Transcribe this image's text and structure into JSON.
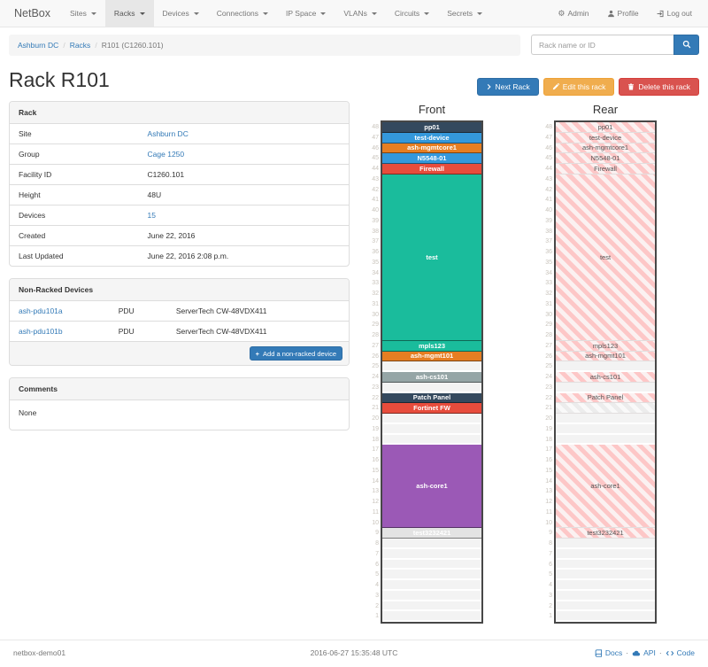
{
  "navbar": {
    "brand": "NetBox",
    "items": [
      {
        "label": "Sites",
        "active": false
      },
      {
        "label": "Racks",
        "active": true
      },
      {
        "label": "Devices",
        "active": false
      },
      {
        "label": "Connections",
        "active": false
      },
      {
        "label": "IP Space",
        "active": false
      },
      {
        "label": "VLANs",
        "active": false
      },
      {
        "label": "Circuits",
        "active": false
      },
      {
        "label": "Secrets",
        "active": false
      }
    ],
    "admin_label": "Admin",
    "profile_label": "Profile",
    "logout_label": "Log out"
  },
  "breadcrumb": {
    "items": [
      {
        "label": "Ashburn DC",
        "link": true
      },
      {
        "label": "Racks",
        "link": true
      },
      {
        "label": "R101 (C1260.101)",
        "link": false
      }
    ]
  },
  "search": {
    "placeholder": "Rack name or ID"
  },
  "page_title": "Rack R101",
  "actions": {
    "next_label": "Next Rack",
    "edit_label": "Edit this rack",
    "delete_label": "Delete this rack"
  },
  "rack_panel": {
    "title": "Rack",
    "rows": [
      {
        "label": "Site",
        "value": "Ashburn DC",
        "link": true
      },
      {
        "label": "Group",
        "value": "Cage 1250",
        "link": true
      },
      {
        "label": "Facility ID",
        "value": "C1260.101",
        "link": false
      },
      {
        "label": "Height",
        "value": "48U",
        "link": false
      },
      {
        "label": "Devices",
        "value": "15",
        "link": true
      },
      {
        "label": "Created",
        "value": "June 22, 2016",
        "link": false
      },
      {
        "label": "Last Updated",
        "value": "June 22, 2016 2:08 p.m.",
        "link": false
      }
    ]
  },
  "non_racked_panel": {
    "title": "Non-Racked Devices",
    "rows": [
      {
        "name": "ash-pdu101a",
        "role": "PDU",
        "model": "ServerTech CW-48VDX411"
      },
      {
        "name": "ash-pdu101b",
        "role": "PDU",
        "model": "ServerTech CW-48VDX411"
      }
    ],
    "add_button_label": "Add a non-racked device"
  },
  "comments_panel": {
    "title": "Comments",
    "body": "None"
  },
  "elevation": {
    "front_title": "Front",
    "rear_title": "Rear",
    "total_units": 48,
    "devices": [
      {
        "name": "pp01",
        "top_unit": 48,
        "u_height": 1,
        "color": "#34495e",
        "rear_blank": false
      },
      {
        "name": "test-device",
        "top_unit": 47,
        "u_height": 1,
        "color": "#3498db",
        "rear_blank": false
      },
      {
        "name": "ash-mgmtcore1",
        "top_unit": 46,
        "u_height": 1,
        "color": "#e67e22",
        "rear_blank": false
      },
      {
        "name": "N5548-01",
        "top_unit": 45,
        "u_height": 1,
        "color": "#3498db",
        "rear_blank": false
      },
      {
        "name": "Firewall",
        "top_unit": 44,
        "u_height": 1,
        "color": "#e74c3c",
        "rear_blank": false
      },
      {
        "name": "test",
        "top_unit": 43,
        "u_height": 16,
        "color": "#1abc9c",
        "rear_blank": false
      },
      {
        "name": "mpls123",
        "top_unit": 27,
        "u_height": 1,
        "color": "#1abc9c",
        "rear_blank": false
      },
      {
        "name": "ash-mgmt101",
        "top_unit": 26,
        "u_height": 1,
        "color": "#e67e22",
        "rear_blank": false
      },
      {
        "name": "ash-cs101",
        "top_unit": 24,
        "u_height": 1,
        "color": "#95a5a6",
        "rear_blank": false
      },
      {
        "name": "Patch Panel",
        "top_unit": 22,
        "u_height": 1,
        "color": "#34495e",
        "rear_blank": false
      },
      {
        "name": "Fortinet FW",
        "top_unit": 21,
        "u_height": 1,
        "color": "#e74c3c",
        "rear_blank": true
      },
      {
        "name": "ash-core1",
        "top_unit": 17,
        "u_height": 8,
        "color": "#9b59b6",
        "rear_blank": false
      },
      {
        "name": "test3232421",
        "top_unit": 9,
        "u_height": 1,
        "color": "#e3e3e3",
        "rear_blank": false
      }
    ]
  },
  "footer": {
    "hostname": "netbox-demo01",
    "timestamp": "2016-06-27 15:35:48 UTC",
    "links": [
      {
        "label": "Docs",
        "icon": "book-icon"
      },
      {
        "label": "API",
        "icon": "cloud-icon"
      },
      {
        "label": "Code",
        "icon": "code-icon"
      }
    ]
  },
  "icons": {
    "nav_dropdown": "caret-down",
    "admin": "gear",
    "profile": "user",
    "logout": "log-out",
    "search": "magnifier",
    "next": "chevron-right",
    "edit": "pencil",
    "delete": "trash",
    "add": "plus",
    "docs": "book",
    "api": "cloud",
    "code": "code-brackets"
  },
  "colors": {
    "link": "#337ab7",
    "btn_primary": "#337ab7",
    "btn_warning": "#f0ad4e",
    "btn_danger": "#d9534f",
    "rear_hatch": "#fdc7c7",
    "rear_blank_hatch": "#ececec",
    "navbar_bg": "#f8f8f8",
    "panel_heading_bg": "#f5f5f5"
  }
}
